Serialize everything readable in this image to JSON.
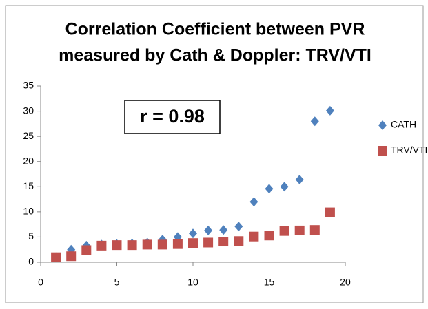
{
  "chart_data": {
    "type": "scatter",
    "title": [
      "Correlation Coefficient between PVR",
      "measured by Cath & Doppler: TRV/VTI"
    ],
    "annotation": "r = 0.98",
    "series": [
      {
        "name": "CATH",
        "color": "#4f81bd",
        "marker": "diamond",
        "x": [
          1,
          2,
          3,
          4,
          5,
          6,
          7,
          8,
          9,
          10,
          11,
          12,
          13,
          14,
          15,
          16,
          17,
          18,
          19
        ],
        "values": [
          1.0,
          2.5,
          3.3,
          3.5,
          3.6,
          3.7,
          3.9,
          4.5,
          5.0,
          5.7,
          6.3,
          6.4,
          7.1,
          12,
          14.6,
          15,
          16.4,
          28,
          30.1
        ]
      },
      {
        "name": "TRV/VTI",
        "color": "#c0504d",
        "marker": "square",
        "x": [
          1,
          2,
          3,
          4,
          5,
          6,
          7,
          8,
          9,
          10,
          11,
          12,
          13,
          14,
          15,
          16,
          17,
          18,
          19
        ],
        "values": [
          1.0,
          1.2,
          2.4,
          3.3,
          3.4,
          3.4,
          3.5,
          3.5,
          3.6,
          3.8,
          3.9,
          4.1,
          4.2,
          5.1,
          5.3,
          6.2,
          6.3,
          6.4,
          9.9
        ]
      }
    ],
    "xlim": [
      0,
      20
    ],
    "xticks": [
      0,
      5,
      10,
      15,
      20
    ],
    "ylim": [
      0,
      35
    ],
    "yticks": [
      0,
      5,
      10,
      15,
      20,
      25,
      30,
      35
    ],
    "grid": false,
    "legend": "right"
  }
}
